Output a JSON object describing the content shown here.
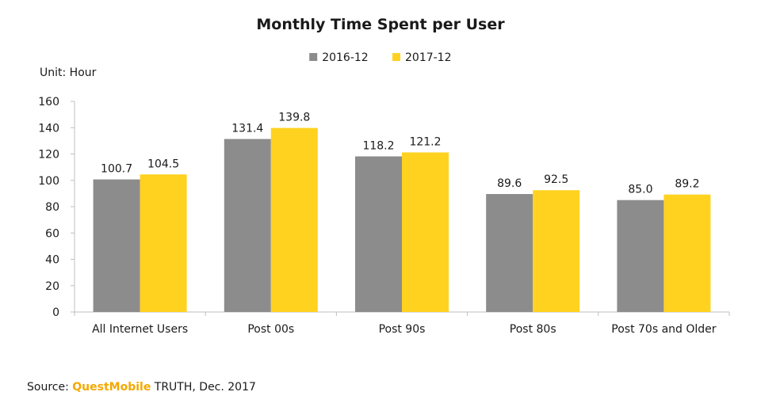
{
  "chart_data": {
    "type": "bar",
    "title": "Monthly Time Spent per User",
    "unit_label": "Unit: Hour",
    "categories": [
      "All Internet Users",
      "Post 00s",
      "Post 90s",
      "Post 80s",
      "Post 70s and Older"
    ],
    "series": [
      {
        "name": "2016-12",
        "color": "#8c8c8c",
        "values": [
          100.7,
          131.4,
          118.2,
          89.6,
          85.0
        ]
      },
      {
        "name": "2017-12",
        "color": "#ffd21f",
        "values": [
          104.5,
          139.8,
          121.2,
          92.5,
          89.2
        ]
      }
    ],
    "ylim": [
      0,
      160
    ],
    "yticks": [
      0,
      20,
      40,
      60,
      80,
      100,
      120,
      140,
      160
    ],
    "legend_position": "top-center",
    "grid": false
  },
  "source": {
    "prefix": "Source: ",
    "brand": "QuestMobile",
    "suffix": " TRUTH, Dec. 2017"
  }
}
